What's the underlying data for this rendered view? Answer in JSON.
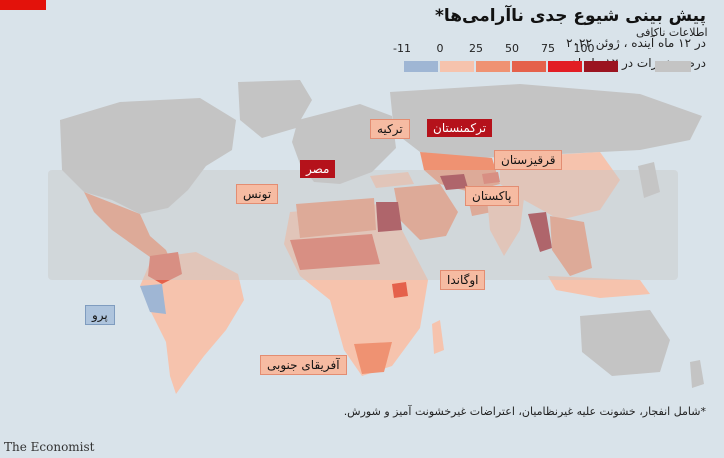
{
  "title": "پیش بینی شیوع جدی ناآرامی‌ها*",
  "subtitle_line1": "در ۱۲ ماه آینده ، ژوئن ۲۰۲۲",
  "subtitle_line2": "درصد تغییرات در ۱۲ ماه اخیر",
  "legend": {
    "insufficient_label": "اطلاعات ناکافی",
    "ticks": [
      "-11",
      "0",
      "25",
      "50",
      "75",
      "100"
    ],
    "bins": [
      {
        "color": "#9fb6d4"
      },
      {
        "color": "#f6c3ad"
      },
      {
        "color": "#ef9272"
      },
      {
        "color": "#e5614b"
      },
      {
        "color": "#e21d24"
      },
      {
        "color": "#9b1420"
      }
    ],
    "insufficient_color": "#c4c4c4"
  },
  "callouts": {
    "turkmenistan": "ترکمنستان",
    "turkey": "ترکیه",
    "egypt": "مصر",
    "tunisia": "تونس",
    "kyrgyzstan": "قرقیزستان",
    "pakistan": "پاکستان",
    "uganda": "اوگاندا",
    "peru": "پرو",
    "south_africa": "آفریقای جنوبی"
  },
  "footnote": "*شامل انفجار، خشونت علیه غیرنظامیان، اعتراضات غیرخشونت آمیز و شورش.",
  "source": "The Economist",
  "colors": {
    "ocean": "#d9e3ea",
    "land_default": "#f6c3ad",
    "land_insufficient": "#c4c4c4",
    "land_mid": "#ef9272",
    "land_high": "#e5614b",
    "land_very_high": "#9b1420",
    "land_negative": "#9fb6d4",
    "brand_red": "#e3120b"
  }
}
